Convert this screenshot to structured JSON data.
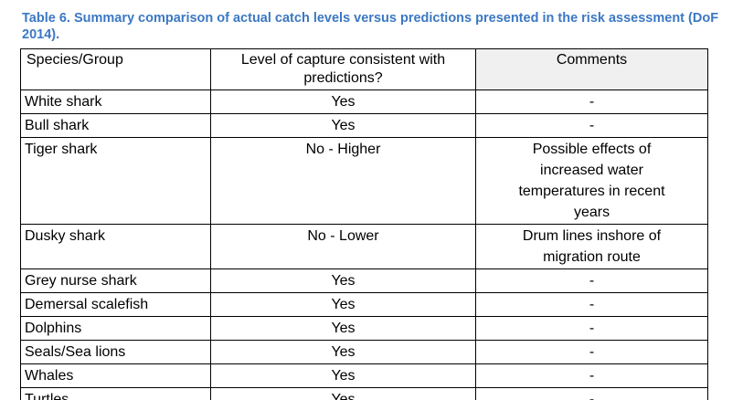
{
  "caption": "Table 6. Summary comparison of actual catch levels versus predictions presented in the risk assessment (DoF\n2014).",
  "table": {
    "columns": [
      "Species/Group",
      "Level of capture consistent with predictions?",
      "Comments"
    ],
    "rows": [
      {
        "species": "White shark",
        "consistent": "Yes",
        "comments": "-"
      },
      {
        "species": "Bull shark",
        "consistent": "Yes",
        "comments": "-"
      },
      {
        "species": "Tiger shark",
        "consistent": "No - Higher",
        "comments": "Possible effects of\nincreased water\ntemperatures in recent\nyears"
      },
      {
        "species": "Dusky shark",
        "consistent": "No - Lower",
        "comments": "Drum lines inshore of\nmigration route"
      },
      {
        "species": "Grey nurse shark",
        "consistent": "Yes",
        "comments": "-"
      },
      {
        "species": "Demersal scalefish",
        "consistent": "Yes",
        "comments": "-"
      },
      {
        "species": "Dolphins",
        "consistent": "Yes",
        "comments": "-"
      },
      {
        "species": "Seals/Sea lions",
        "consistent": "Yes",
        "comments": "-"
      },
      {
        "species": "Whales",
        "consistent": "Yes",
        "comments": "-"
      },
      {
        "species": "Turtles",
        "consistent": "Yes",
        "comments": "-"
      }
    ]
  },
  "colors": {
    "caption_blue": "#3b78c3",
    "table_border": "#000000",
    "comments_header_bg": "#f0f0f0",
    "page_background": "#ffffff"
  }
}
